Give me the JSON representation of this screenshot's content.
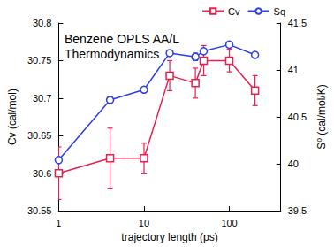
{
  "chart_data": {
    "type": "line",
    "annotation": "Benzene OPLS AA/L\nThermodynamics",
    "xlabel": "trajectory length (ps)",
    "ylabel": "Cv (cal/mol)",
    "y2label": "S⁰ (cal/mol/K)",
    "log": "x",
    "grid": false,
    "legend": "upper right",
    "x": [
      1,
      4,
      10,
      20,
      40,
      50,
      100,
      200
    ],
    "xlim": [
      1,
      400
    ],
    "xticks": [
      1,
      10,
      100
    ],
    "ylim": [
      30.55,
      30.8
    ],
    "yticks": [
      30.55,
      30.6,
      30.65,
      30.7,
      30.75,
      30.8
    ],
    "y2lim": [
      39.5,
      41.5
    ],
    "y2ticks": [
      39.5,
      40,
      40.5,
      41,
      41.5
    ],
    "series": [
      {
        "name": "Cv",
        "color": "#e8204e",
        "marker": "square",
        "values": [
          30.6,
          30.62,
          30.62,
          30.73,
          30.72,
          30.75,
          30.75,
          30.71
        ],
        "errors": [
          0.035,
          0.04,
          0.02,
          0.02,
          0.02,
          0.02,
          0.015,
          0.02
        ]
      },
      {
        "name": "Sq",
        "color": "#2d3ee6",
        "marker": "circle",
        "axis": "y2",
        "values": [
          40.04,
          40.68,
          40.79,
          41.18,
          41.14,
          41.2,
          41.27,
          41.16
        ],
        "errors": [
          0.03,
          0.03,
          0.01,
          0.02,
          0.04,
          0.02,
          0.03,
          0.02
        ]
      }
    ]
  }
}
